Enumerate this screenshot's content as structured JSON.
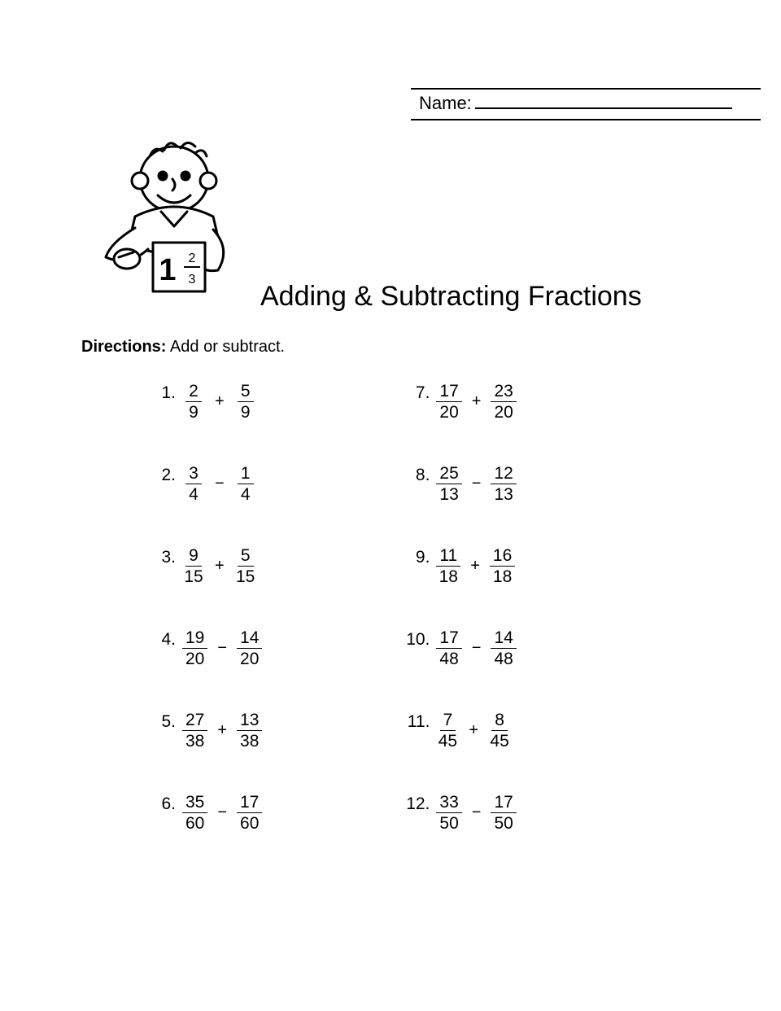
{
  "name_label": "Name:",
  "title": "Adding & Subtracting Fractions",
  "directions_label": "Directions:",
  "directions_text": "Add or subtract.",
  "columns": [
    [
      {
        "n": "1.",
        "a_num": "2",
        "a_den": "9",
        "op": "+",
        "b_num": "5",
        "b_den": "9"
      },
      {
        "n": "2.",
        "a_num": "3",
        "a_den": "4",
        "op": "−",
        "b_num": "1",
        "b_den": "4"
      },
      {
        "n": "3.",
        "a_num": "9",
        "a_den": "15",
        "op": "+",
        "b_num": "5",
        "b_den": "15"
      },
      {
        "n": "4.",
        "a_num": "19",
        "a_den": "20",
        "op": "−",
        "b_num": "14",
        "b_den": "20"
      },
      {
        "n": "5.",
        "a_num": "27",
        "a_den": "38",
        "op": "+",
        "b_num": "13",
        "b_den": "38"
      },
      {
        "n": "6.",
        "a_num": "35",
        "a_den": "60",
        "op": "−",
        "b_num": "17",
        "b_den": "60"
      }
    ],
    [
      {
        "n": "7.",
        "a_num": "17",
        "a_den": "20",
        "op": "+",
        "b_num": "23",
        "b_den": "20"
      },
      {
        "n": "8.",
        "a_num": "25",
        "a_den": "13",
        "op": "−",
        "b_num": "12",
        "b_den": "13"
      },
      {
        "n": "9.",
        "a_num": "11",
        "a_den": "18",
        "op": "+",
        "b_num": "16",
        "b_den": "18"
      },
      {
        "n": "10.",
        "a_num": "17",
        "a_den": "48",
        "op": "−",
        "b_num": "14",
        "b_den": "48"
      },
      {
        "n": "11.",
        "a_num": "7",
        "a_den": "45",
        "op": "+",
        "b_num": "8",
        "b_den": "45"
      },
      {
        "n": "12.",
        "a_num": "33",
        "a_den": "50",
        "op": "−",
        "b_num": "17",
        "b_den": "50"
      }
    ]
  ]
}
